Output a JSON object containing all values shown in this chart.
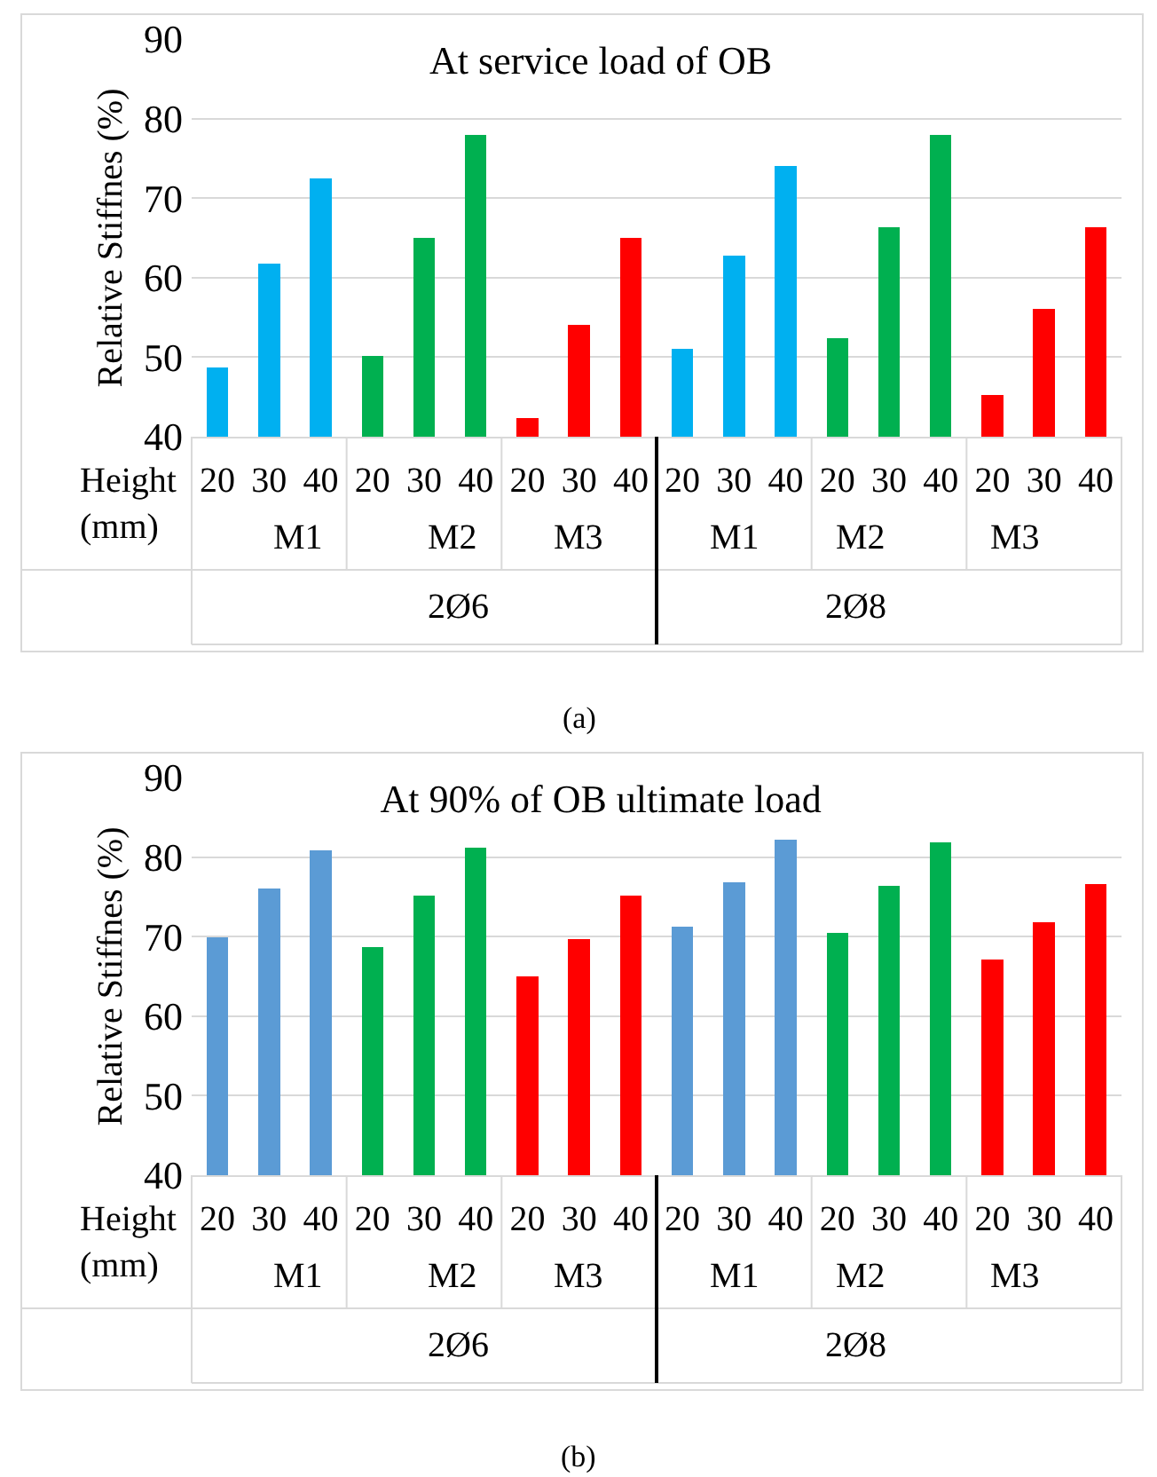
{
  "chart_data": [
    {
      "type": "bar",
      "title": "At service load of OB",
      "ylabel": "Relative Stiffnes (%)",
      "categories": [
        "20",
        "30",
        "40",
        "20",
        "30",
        "40",
        "20",
        "30",
        "40",
        "20",
        "30",
        "40",
        "20",
        "30",
        "40",
        "20",
        "30",
        "40"
      ],
      "values": [
        48.7,
        61.8,
        72.5,
        50.2,
        65,
        78,
        42.4,
        54.1,
        65,
        51,
        62.8,
        74,
        52.4,
        66.3,
        78,
        45.2,
        56.1,
        66.3
      ],
      "colors": [
        "#00b0f0",
        "#00b0f0",
        "#00b0f0",
        "#00b050",
        "#00b050",
        "#00b050",
        "#ff0000",
        "#ff0000",
        "#ff0000",
        "#00b0f0",
        "#00b0f0",
        "#00b0f0",
        "#00b050",
        "#00b050",
        "#00b050",
        "#ff0000",
        "#ff0000",
        "#ff0000"
      ],
      "ylim": [
        40,
        90
      ],
      "yticks": [
        40,
        50,
        60,
        70,
        80,
        90
      ],
      "grid": "y",
      "annotations": [
        "Height\n(mm)",
        "M1",
        "M2",
        "M3",
        "M1",
        "M2",
        "M3",
        "2Ø6",
        "2Ø8",
        "(a)"
      ]
    },
    {
      "type": "bar",
      "title": "At 90% of OB ultimate load",
      "ylabel": "Relative Stiffnes (%)",
      "categories": [
        "20",
        "30",
        "40",
        "20",
        "30",
        "40",
        "20",
        "30",
        "40",
        "20",
        "30",
        "40",
        "20",
        "30",
        "40",
        "20",
        "30",
        "40"
      ],
      "values": [
        69.9,
        76,
        80.9,
        68.7,
        75.2,
        81.2,
        65,
        69.7,
        75.2,
        71.2,
        76.8,
        82.2,
        70.5,
        76.4,
        81.9,
        67.1,
        71.8,
        76.6
      ],
      "colors": [
        "#5b9bd5",
        "#5b9bd5",
        "#5b9bd5",
        "#00b050",
        "#00b050",
        "#00b050",
        "#ff0000",
        "#ff0000",
        "#ff0000",
        "#5b9bd5",
        "#5b9bd5",
        "#5b9bd5",
        "#00b050",
        "#00b050",
        "#00b050",
        "#ff0000",
        "#ff0000",
        "#ff0000"
      ],
      "ylim": [
        40,
        90
      ],
      "yticks": [
        40,
        50,
        60,
        70,
        80,
        90
      ],
      "grid": "y",
      "annotations": [
        "Height\n(mm)",
        "M1",
        "M2",
        "M3",
        "M1",
        "M2",
        "M3",
        "2Ø6",
        "2Ø8",
        "(b)"
      ]
    }
  ]
}
